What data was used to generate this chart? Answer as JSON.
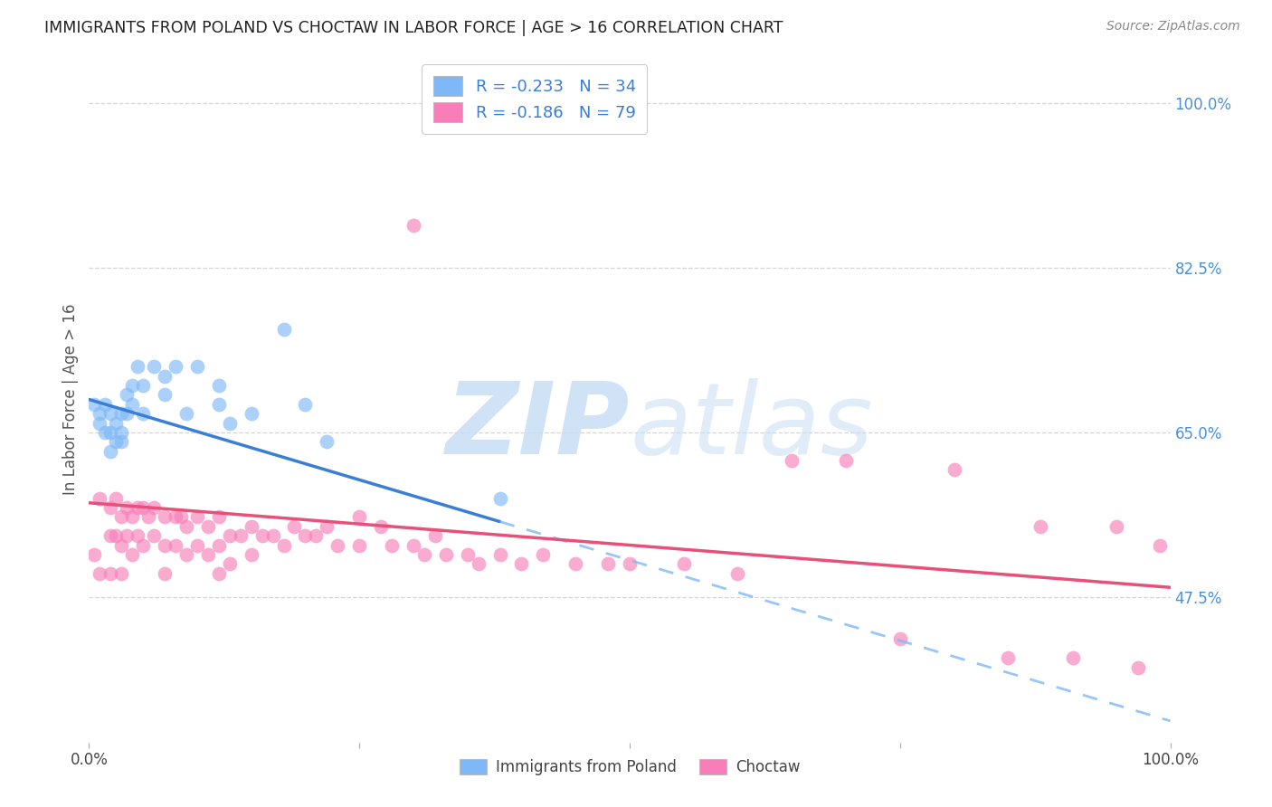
{
  "title": "IMMIGRANTS FROM POLAND VS CHOCTAW IN LABOR FORCE | AGE > 16 CORRELATION CHART",
  "source": "Source: ZipAtlas.com",
  "ylabel": "In Labor Force | Age > 16",
  "xlim": [
    0.0,
    1.0
  ],
  "ylim": [
    0.32,
    1.05
  ],
  "x_tick_labels": [
    "0.0%",
    "",
    "",
    "",
    "100.0%"
  ],
  "x_tick_vals": [
    0.0,
    0.25,
    0.5,
    0.75,
    1.0
  ],
  "y_tick_labels_right": [
    "100.0%",
    "82.5%",
    "65.0%",
    "47.5%"
  ],
  "y_tick_values_right": [
    1.0,
    0.825,
    0.65,
    0.475
  ],
  "poland_R": -0.233,
  "poland_N": 34,
  "choctaw_R": -0.186,
  "choctaw_N": 79,
  "poland_color": "#7eb8f7",
  "choctaw_color": "#f77eb8",
  "poland_line_color": "#3a7fd5",
  "choctaw_line_color": "#e8507a",
  "poland_dash_color": "#7eb8f7",
  "watermark_color": "#c8dff5",
  "background_color": "#ffffff",
  "grid_color": "#cccccc",
  "poland_x": [
    0.005,
    0.01,
    0.01,
    0.015,
    0.015,
    0.02,
    0.02,
    0.02,
    0.025,
    0.025,
    0.03,
    0.03,
    0.03,
    0.035,
    0.035,
    0.04,
    0.04,
    0.045,
    0.05,
    0.05,
    0.06,
    0.07,
    0.07,
    0.08,
    0.09,
    0.1,
    0.12,
    0.12,
    0.13,
    0.15,
    0.18,
    0.2,
    0.22,
    0.38
  ],
  "poland_y": [
    0.68,
    0.67,
    0.66,
    0.68,
    0.65,
    0.67,
    0.65,
    0.63,
    0.66,
    0.64,
    0.67,
    0.65,
    0.64,
    0.69,
    0.67,
    0.7,
    0.68,
    0.72,
    0.7,
    0.67,
    0.72,
    0.71,
    0.69,
    0.72,
    0.67,
    0.72,
    0.7,
    0.68,
    0.66,
    0.67,
    0.76,
    0.68,
    0.64,
    0.58
  ],
  "choctaw_x": [
    0.005,
    0.01,
    0.01,
    0.02,
    0.02,
    0.02,
    0.025,
    0.025,
    0.03,
    0.03,
    0.03,
    0.035,
    0.035,
    0.04,
    0.04,
    0.045,
    0.045,
    0.05,
    0.05,
    0.055,
    0.06,
    0.06,
    0.07,
    0.07,
    0.07,
    0.08,
    0.08,
    0.085,
    0.09,
    0.09,
    0.1,
    0.1,
    0.11,
    0.11,
    0.12,
    0.12,
    0.12,
    0.13,
    0.13,
    0.14,
    0.15,
    0.15,
    0.16,
    0.17,
    0.18,
    0.19,
    0.2,
    0.21,
    0.22,
    0.23,
    0.25,
    0.25,
    0.27,
    0.28,
    0.3,
    0.31,
    0.32,
    0.33,
    0.35,
    0.36,
    0.38,
    0.4,
    0.42,
    0.45,
    0.48,
    0.5,
    0.55,
    0.6,
    0.65,
    0.7,
    0.75,
    0.8,
    0.85,
    0.88,
    0.91,
    0.95,
    0.97,
    0.99,
    0.3
  ],
  "choctaw_y": [
    0.52,
    0.58,
    0.5,
    0.57,
    0.54,
    0.5,
    0.58,
    0.54,
    0.56,
    0.53,
    0.5,
    0.57,
    0.54,
    0.56,
    0.52,
    0.57,
    0.54,
    0.57,
    0.53,
    0.56,
    0.57,
    0.54,
    0.56,
    0.53,
    0.5,
    0.56,
    0.53,
    0.56,
    0.55,
    0.52,
    0.56,
    0.53,
    0.55,
    0.52,
    0.56,
    0.53,
    0.5,
    0.54,
    0.51,
    0.54,
    0.55,
    0.52,
    0.54,
    0.54,
    0.53,
    0.55,
    0.54,
    0.54,
    0.55,
    0.53,
    0.56,
    0.53,
    0.55,
    0.53,
    0.53,
    0.52,
    0.54,
    0.52,
    0.52,
    0.51,
    0.52,
    0.51,
    0.52,
    0.51,
    0.51,
    0.51,
    0.51,
    0.5,
    0.62,
    0.62,
    0.43,
    0.61,
    0.41,
    0.55,
    0.41,
    0.55,
    0.4,
    0.53,
    0.87
  ],
  "poland_line_x0": 0.0,
  "poland_line_y0": 0.685,
  "poland_line_x1": 0.38,
  "poland_line_y1": 0.555,
  "choctaw_line_x0": 0.0,
  "choctaw_line_y0": 0.575,
  "choctaw_line_x1": 1.0,
  "choctaw_line_y1": 0.485
}
